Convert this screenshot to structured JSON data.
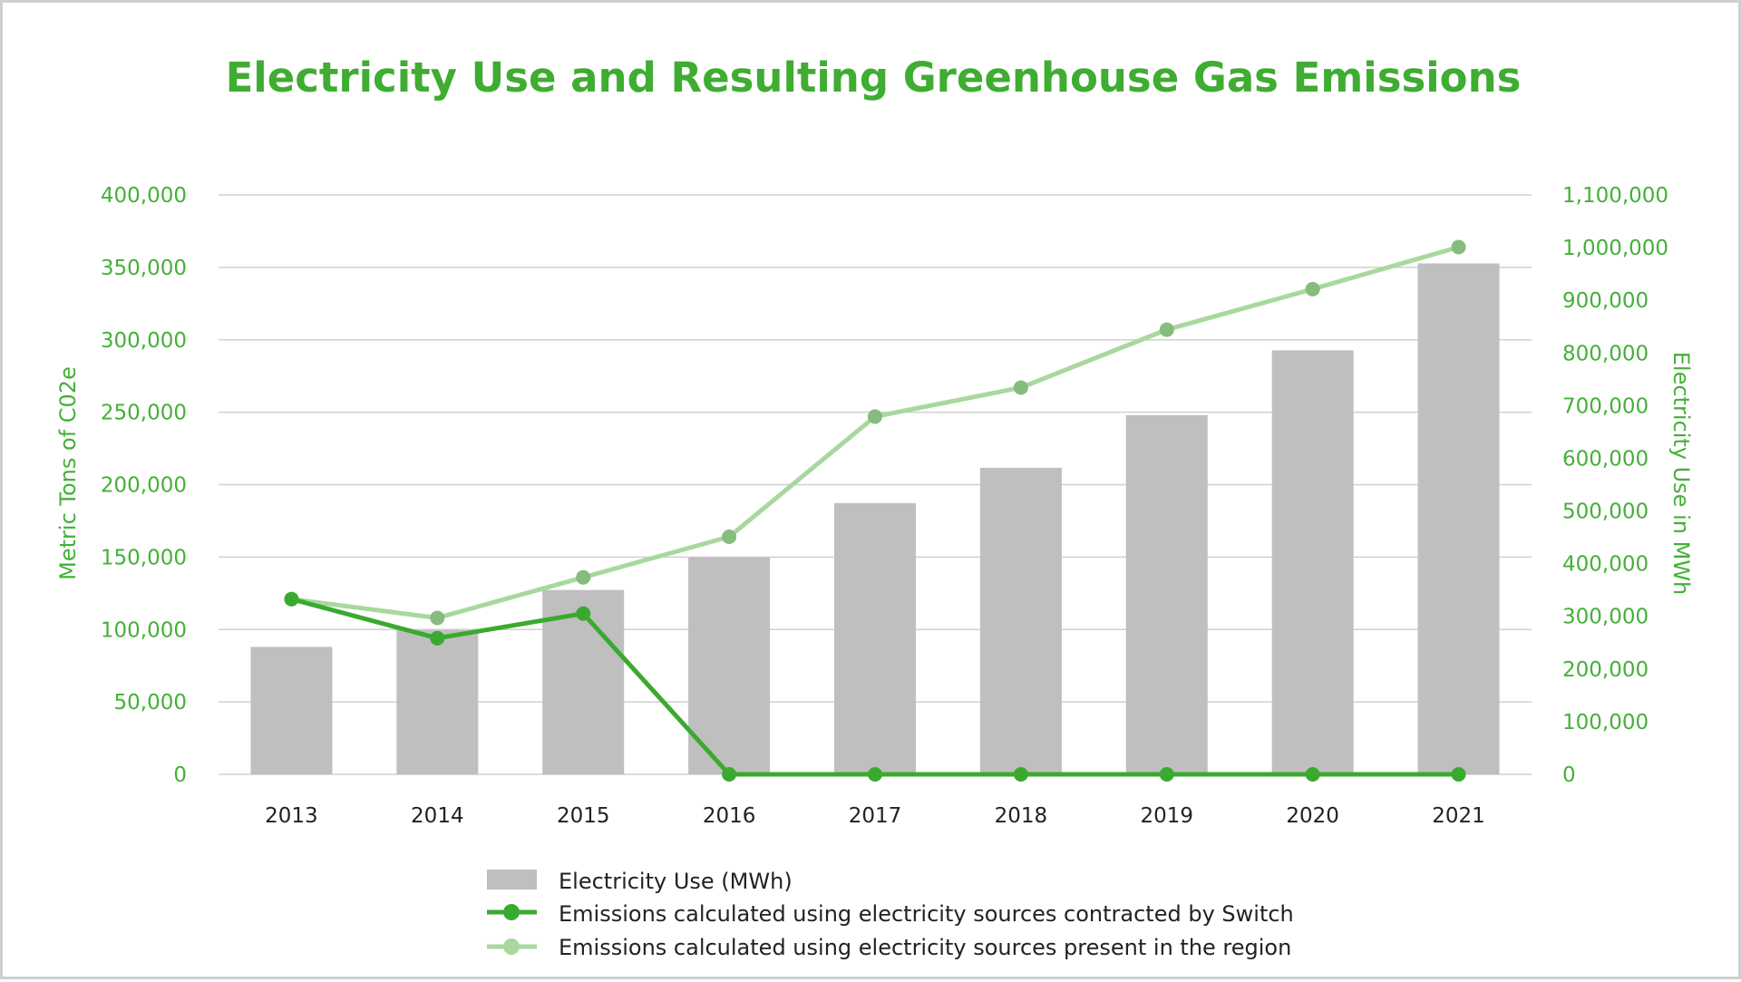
{
  "colors": {
    "title": "#3fac32",
    "axis_text": "#45b038",
    "bar": "#bfbfbf",
    "line_contracted": "#3aaa2e",
    "line_region": "#a8d89e",
    "line_region_marker": "#86bc7d",
    "grid": "#d0d0d0"
  },
  "chart_data": {
    "type": "bar",
    "title": "Electricity Use and Resulting Greenhouse Gas Emissions",
    "categories": [
      "2013",
      "2014",
      "2015",
      "2016",
      "2017",
      "2018",
      "2019",
      "2020",
      "2021"
    ],
    "y_left": {
      "label": "Metric Tons of C02e",
      "ylim": [
        0,
        400000
      ],
      "ticks": [
        "0",
        "50,000",
        "100,000",
        "150,000",
        "200,000",
        "250,000",
        "300,000",
        "350,000",
        "400,000"
      ]
    },
    "y_right": {
      "label": "Electricity Use in MWh",
      "ylim": [
        0,
        1100000
      ],
      "ticks": [
        "0",
        "100,000",
        "200,000",
        "300,000",
        "400,000",
        "500,000",
        "600,000",
        "700,000",
        "800,000",
        "900,000",
        "1,000,000",
        "1,100,000"
      ]
    },
    "grid": true,
    "legend_position": "bottom",
    "series": [
      {
        "name": "Electricity Use (MWh)",
        "type": "bar",
        "axis": "right",
        "values": [
          242000,
          274000,
          350000,
          412000,
          515000,
          582000,
          682000,
          805000,
          970000
        ]
      },
      {
        "name": "Emissions calculated using electricity sources contracted by Switch",
        "type": "line",
        "axis": "left",
        "values": [
          121000,
          94000,
          111000,
          0,
          0,
          0,
          0,
          0,
          0
        ]
      },
      {
        "name": "Emissions calculated using electricity sources present in the region",
        "type": "line",
        "axis": "left",
        "values": [
          121000,
          108000,
          136000,
          164000,
          247000,
          267000,
          307000,
          335000,
          364000
        ]
      }
    ]
  }
}
